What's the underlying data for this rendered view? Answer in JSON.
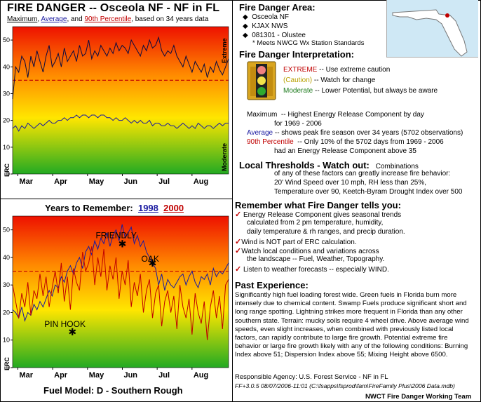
{
  "header": {
    "title": "FIRE DANGER -- Osceola NF - NF in FL",
    "sub_max": "Maximum",
    "sub_sep1": ", ",
    "sub_avg": "Average",
    "sub_and": ", and ",
    "sub_pct": "90th Percentile",
    "sub_tail": ", based on 34 years data"
  },
  "chart_data": [
    {
      "type": "line",
      "ylabel": "ERC",
      "ylim": [
        0,
        55
      ],
      "yticks": [
        0,
        10,
        20,
        30,
        40,
        50
      ],
      "xticks": [
        "Mar",
        "Apr",
        "May",
        "Jun",
        "Jul",
        "Aug"
      ],
      "band_labels": {
        "top": "Extreme",
        "bottom": "Moderate"
      },
      "percentile_90": 35,
      "series": [
        {
          "name": "Maximum",
          "color": "#0a0a40",
          "values": [
            28,
            40,
            38,
            44,
            42,
            36,
            44,
            40,
            46,
            42,
            38,
            44,
            48,
            40,
            42,
            45,
            40,
            47,
            42,
            44,
            46,
            42,
            48,
            44,
            45,
            50,
            43,
            46,
            44,
            48,
            46,
            44,
            47,
            45,
            49,
            46,
            48,
            47,
            45,
            50,
            48,
            46,
            44,
            48,
            46,
            50,
            47,
            48,
            51,
            46,
            44,
            46,
            45,
            48,
            44,
            42,
            40,
            44,
            41,
            38,
            42,
            40,
            38,
            41,
            36,
            40,
            38,
            42,
            39,
            37,
            40,
            43
          ]
        },
        {
          "name": "Average",
          "color": "#1a1aa0",
          "values": [
            17,
            18,
            16,
            18,
            17,
            19,
            18,
            17,
            18,
            19,
            18,
            19,
            20,
            19,
            19,
            20,
            20,
            21,
            20,
            21,
            21,
            22,
            21,
            22,
            22,
            21,
            22,
            22,
            21,
            22,
            22,
            21,
            21,
            20,
            21,
            20,
            20,
            21,
            20,
            19,
            20,
            19,
            20,
            19,
            19,
            20,
            18,
            19,
            19,
            18,
            18,
            19,
            18,
            18,
            17,
            18,
            19,
            18,
            17,
            18,
            17,
            19,
            18,
            17,
            18,
            18,
            17,
            18,
            19,
            18,
            19,
            19
          ]
        }
      ]
    },
    {
      "type": "line",
      "ylabel": "ERC",
      "ylim": [
        0,
        55
      ],
      "yticks": [
        0,
        10,
        20,
        30,
        40,
        50
      ],
      "xticks": [
        "Mar",
        "Apr",
        "May",
        "Jun",
        "Jul",
        "Aug"
      ],
      "percentile_90": 35,
      "series": [
        {
          "name": "1998",
          "color": "#1a1aa0",
          "values": [
            21,
            20,
            18,
            22,
            17,
            20,
            19,
            23,
            21,
            24,
            22,
            25,
            28,
            26,
            30,
            29,
            33,
            31,
            35,
            37,
            34,
            38,
            40,
            36,
            42,
            44,
            41,
            46,
            43,
            47,
            45,
            49,
            44,
            48,
            50,
            46,
            52,
            47,
            49,
            51,
            45,
            48,
            44,
            46,
            42,
            40,
            38,
            36,
            30,
            34,
            28,
            32,
            30,
            29,
            31,
            33,
            34,
            30,
            33,
            35,
            31,
            29,
            33,
            32,
            34,
            30,
            36,
            33,
            35,
            34,
            36,
            38
          ]
        },
        {
          "name": "2000",
          "color": "#c00000",
          "values": [
            30,
            24,
            18,
            27,
            22,
            31,
            19,
            28,
            25,
            34,
            26,
            33,
            22,
            29,
            35,
            27,
            38,
            24,
            33,
            21,
            36,
            31,
            28,
            42,
            35,
            38,
            44,
            30,
            40,
            33,
            43,
            28,
            37,
            32,
            40,
            25,
            35,
            30,
            39,
            22,
            31,
            26,
            34,
            20,
            28,
            32,
            18,
            27,
            30,
            15,
            24,
            28,
            20,
            26,
            14,
            30,
            22,
            18,
            25,
            12,
            27,
            20,
            16,
            24,
            10,
            22,
            28,
            18,
            26,
            14,
            30,
            32
          ]
        }
      ],
      "markers": [
        {
          "label": "FRIENDLY",
          "x": "May 31",
          "y": 45
        },
        {
          "label": "OAK",
          "x": "Jun 27",
          "y": 38
        },
        {
          "label": "PIN HOOK",
          "x": "Apr 18",
          "y": 13
        }
      ]
    }
  ],
  "years": {
    "title": "Years to Remember:",
    "year1": "1998",
    "year2": "2000"
  },
  "fuel_model": "Fuel Model: D - Southern Rough",
  "area": {
    "title": "Fire Danger Area:",
    "items": [
      "Osceola NF",
      "KJAX NWS",
      "081301 - Olustee"
    ],
    "note": "* Meets NWCG Wx Station Standards"
  },
  "interpretation": {
    "title": "Fire Danger Interpretation:",
    "extreme_label": "EXTREME",
    "extreme_text": "-- Use extreme caution",
    "caution_label": "(Caution)",
    "caution_text": "-- Watch for change",
    "moderate_label": "Moderate",
    "moderate_text": "-- Lower Potential, but always be aware",
    "max_label": "Maximum",
    "max_text": "-- Highest Energy Release Component by day",
    "max_text2": "for 1969 - 2006",
    "avg_label": "Average",
    "avg_text": "-- shows peak fire season over 34 years (5702 observations)",
    "pct_label": "90th Percentile",
    "pct_text": "-- Only 10% of the 5702 days from 1969 - 2006",
    "pct_text2": "had an Energy Release Component above 35"
  },
  "thresholds": {
    "title": "Local Thresholds - Watch out:",
    "intro": "Combinations",
    "line1": "of any of these factors can greatly increase fire behavior:",
    "line2": "20' Wind Speed over 10 mph, RH  less than 25%,",
    "line3": "Temperature over 90, Keetch-Byram Drought Index over 500"
  },
  "remember": {
    "title": "Remember what Fire Danger tells you:",
    "item1": "Energy Release Component gives seasonal trends",
    "item1b": "calculated from 2 pm temperature, humidity,",
    "item1c": "daily temperature & rh ranges, and precip duration.",
    "item2": "Wind is NOT part of ERC calculation.",
    "item3": "Watch local conditions and variations across",
    "item3b": "the landscape -- Fuel, Weather, Topography.",
    "item4": "Listen to weather forecasts -- especially WIND."
  },
  "past": {
    "title": "Past Experience:",
    "text": "Significantly high fuel loading forest wide. Green fuels in Florida burn more intensely due to chemical content. Swamp Fuels produce significant short and long range spotting. Lightning strikes more frequent in Florida than any other southern state. Terrain: mucky soils require 4 wheel drive. Above average wind speeds, even slight increases, when combined with previously listed local factors, can rapidly contribute to large fire growth. Potential extreme fire behavior or large fire growth likely with any of the following conditions: Burning Index above 51; Dispersion Index above 55; Mixing Height above 6500."
  },
  "footer": {
    "agency": "Responsible Agency: U.S. Forest Service - NF in FL",
    "version": "FF+3.0.5  08/07/2006-11:01  (C:\\fsapps\\fsprod\\fam\\FireFamily Plus\\2006 Data.mdb)",
    "team": "NWCT Fire Danger Working Team"
  },
  "colors": {
    "extreme": "#ee1100",
    "high": "#ff8800",
    "caution": "#ffe600",
    "moderate": "#22aa22",
    "pct_line": "#c00000"
  }
}
